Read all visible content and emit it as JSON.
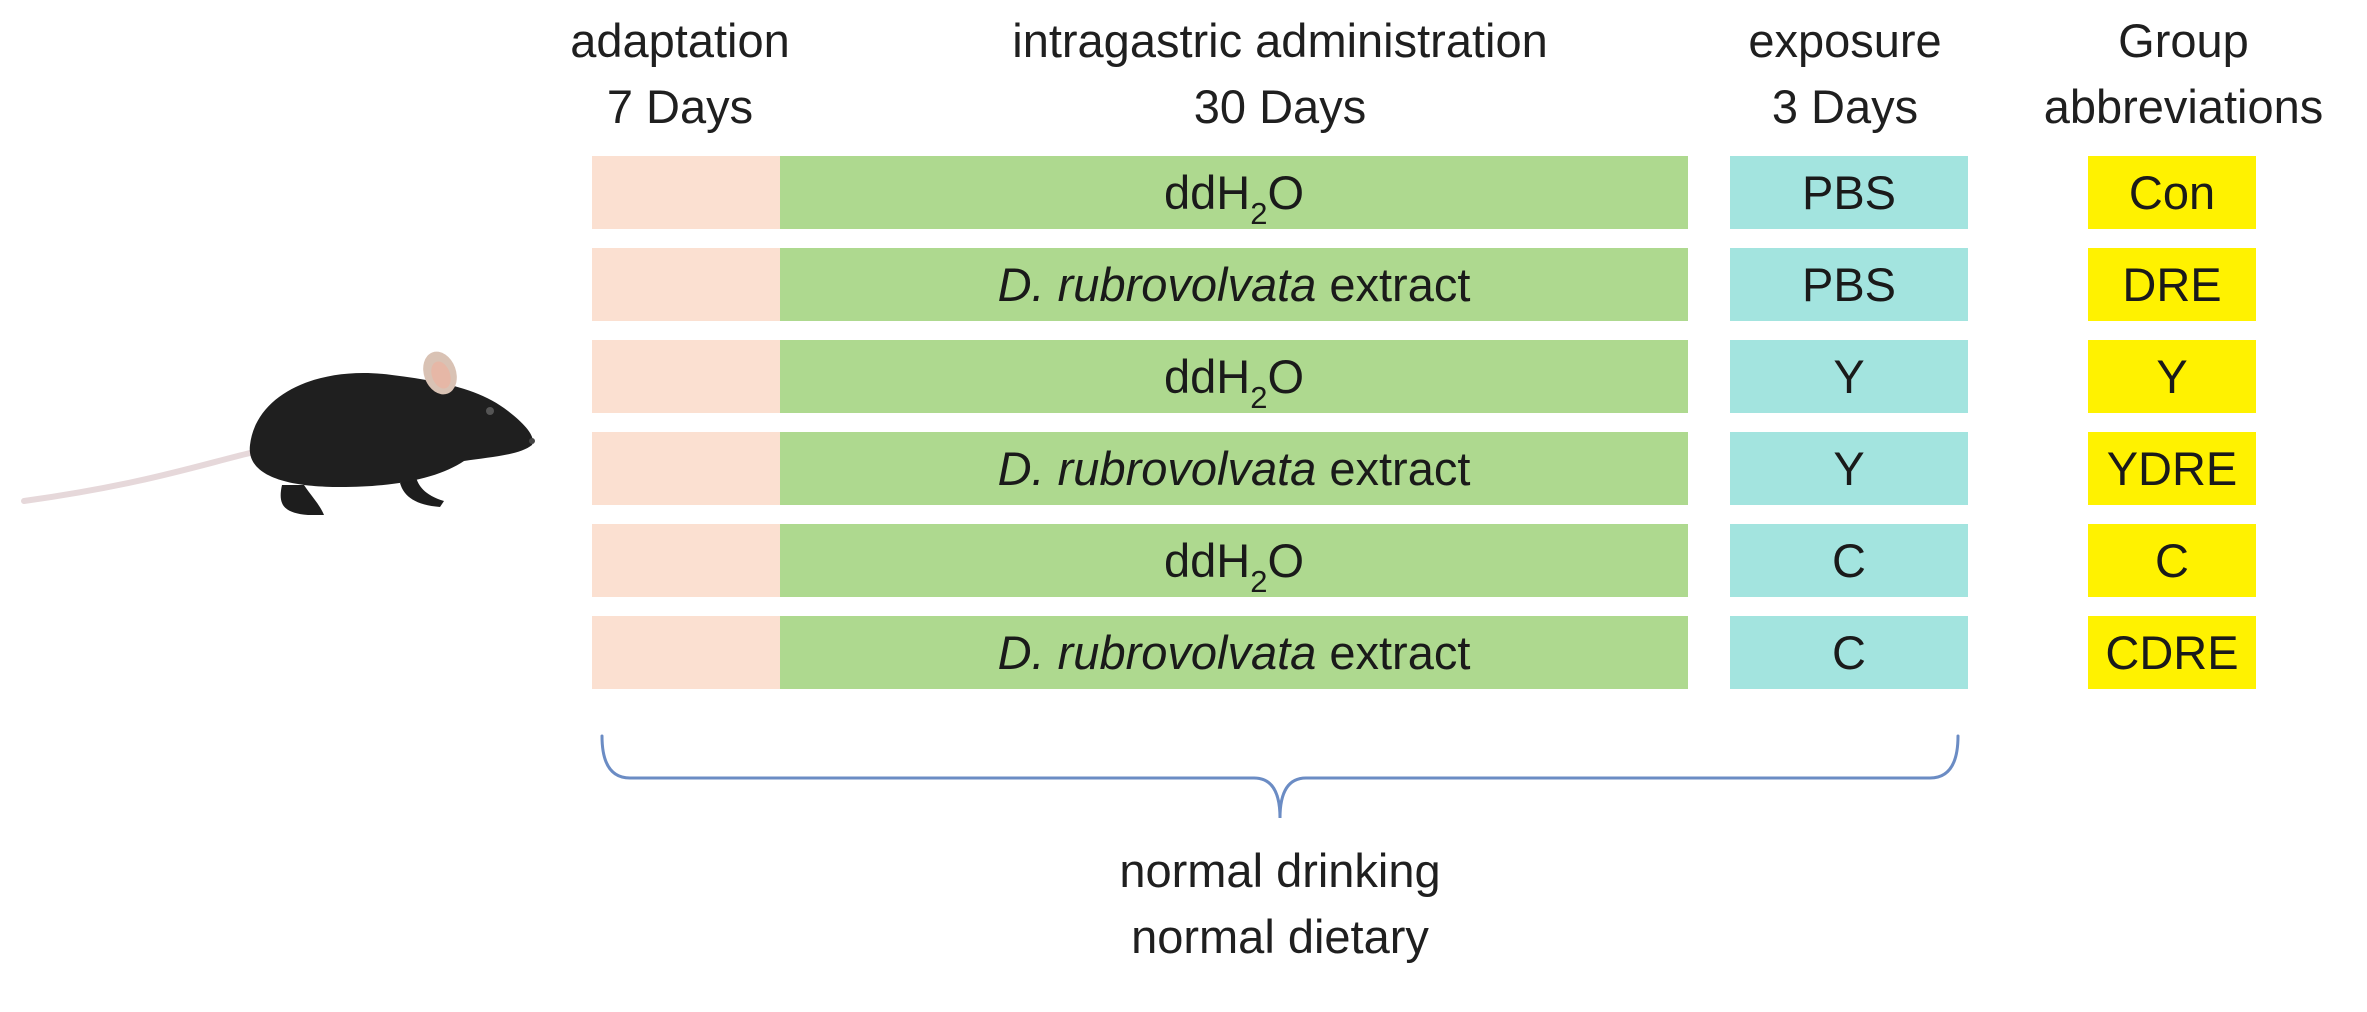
{
  "headers": {
    "adaptation": {
      "line1": "adaptation",
      "line2": "7 Days"
    },
    "intragastric": {
      "line1": "intragastric administration",
      "line2": "30 Days"
    },
    "exposure": {
      "line1": "exposure",
      "line2": "3 Days"
    },
    "group": {
      "line1": "Group",
      "line2": "abbreviations"
    }
  },
  "rows": [
    {
      "treatment": {
        "pre": "ddH",
        "sub": "2",
        "post": "O"
      },
      "exposure": "PBS",
      "abbr": "Con"
    },
    {
      "treatment": {
        "italic": "D. rubrovolvata",
        "rest": " extract"
      },
      "exposure": "PBS",
      "abbr": "DRE"
    },
    {
      "treatment": {
        "pre": "ddH",
        "sub": "2",
        "post": "O"
      },
      "exposure": "Y",
      "abbr": "Y"
    },
    {
      "treatment": {
        "italic": "D. rubrovolvata",
        "rest": " extract"
      },
      "exposure": "Y",
      "abbr": "YDRE"
    },
    {
      "treatment": {
        "pre": "ddH",
        "sub": "2",
        "post": "O"
      },
      "exposure": "C",
      "abbr": "C"
    },
    {
      "treatment": {
        "italic": "D. rubrovolvata",
        "rest": " extract"
      },
      "exposure": "C",
      "abbr": "CDRE"
    }
  ],
  "footer": {
    "line1": "normal drinking",
    "line2": "normal dietary"
  },
  "icons": {
    "animal": "mouse-icon",
    "brace": "curly-brace-icon"
  },
  "colors": {
    "adaptation": "#fbe0d1",
    "intragastric": "#aed98f",
    "exposure": "#a3e4df",
    "abbreviation": "#fff200",
    "brace": "#6b8cc4"
  }
}
